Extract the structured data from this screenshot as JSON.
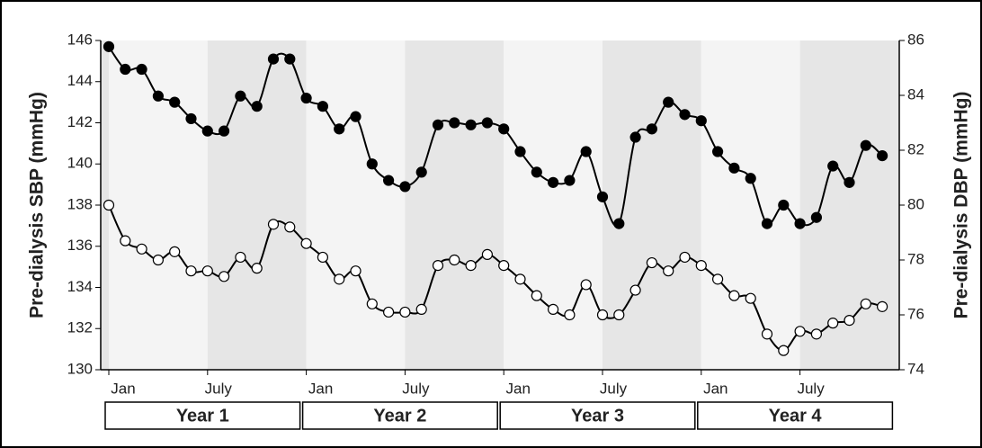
{
  "chart_data": {
    "type": "line",
    "y_label": "Pre-dialysis SBP (mmHg)",
    "y2_label": "Pre-dialysis DBP (mmHg)",
    "categories": [
      "Jan",
      null,
      null,
      null,
      null,
      null,
      "July",
      null,
      null,
      null,
      null,
      null,
      "Jan",
      null,
      null,
      null,
      null,
      null,
      "July",
      null,
      null,
      null,
      null,
      null,
      "Jan",
      null,
      null,
      null,
      null,
      null,
      "July",
      null,
      null,
      null,
      null,
      null,
      "Jan",
      null,
      null,
      null,
      null,
      null,
      "July",
      null,
      null,
      null,
      null,
      null
    ],
    "groups": [
      "Year 1",
      "Year 2",
      "Year 3",
      "Year 4"
    ],
    "ylim": [
      130,
      146
    ],
    "yticks": [
      130,
      132,
      134,
      136,
      138,
      140,
      142,
      144,
      146
    ],
    "y2lim": [
      74,
      86
    ],
    "y2ticks": [
      74,
      76,
      78,
      80,
      82,
      84,
      86
    ],
    "series": [
      {
        "color": "#000000",
        "marker_fill": "#000000",
        "axis": "y",
        "values": [
          145.7,
          144.6,
          144.6,
          143.3,
          143.0,
          142.2,
          141.6,
          141.6,
          143.3,
          142.8,
          145.1,
          145.1,
          143.2,
          142.8,
          141.7,
          142.3,
          140.0,
          139.2,
          138.9,
          139.6,
          141.9,
          142.0,
          141.9,
          142.0,
          141.7,
          140.6,
          139.6,
          139.1,
          139.2,
          140.6,
          138.4,
          137.1,
          141.3,
          141.7,
          143.0,
          142.4,
          142.1,
          140.6,
          139.8,
          139.3,
          137.1,
          138.0,
          137.1,
          137.4,
          139.9,
          139.1,
          140.9,
          140.4
        ]
      },
      {
        "color": "#000000",
        "marker_fill": "#ffffff",
        "axis": "y2",
        "values": [
          80.0,
          78.7,
          78.4,
          78.0,
          78.3,
          77.6,
          77.6,
          77.4,
          78.1,
          77.7,
          79.3,
          79.2,
          78.6,
          78.1,
          77.3,
          77.6,
          76.4,
          76.1,
          76.1,
          76.2,
          77.8,
          78.0,
          77.8,
          78.2,
          77.8,
          77.3,
          76.7,
          76.2,
          76.0,
          77.1,
          76.0,
          76.0,
          76.9,
          77.9,
          77.6,
          78.1,
          77.8,
          77.3,
          76.7,
          76.6,
          75.3,
          74.7,
          75.4,
          75.3,
          75.7,
          75.8,
          76.4,
          76.3
        ]
      }
    ]
  }
}
